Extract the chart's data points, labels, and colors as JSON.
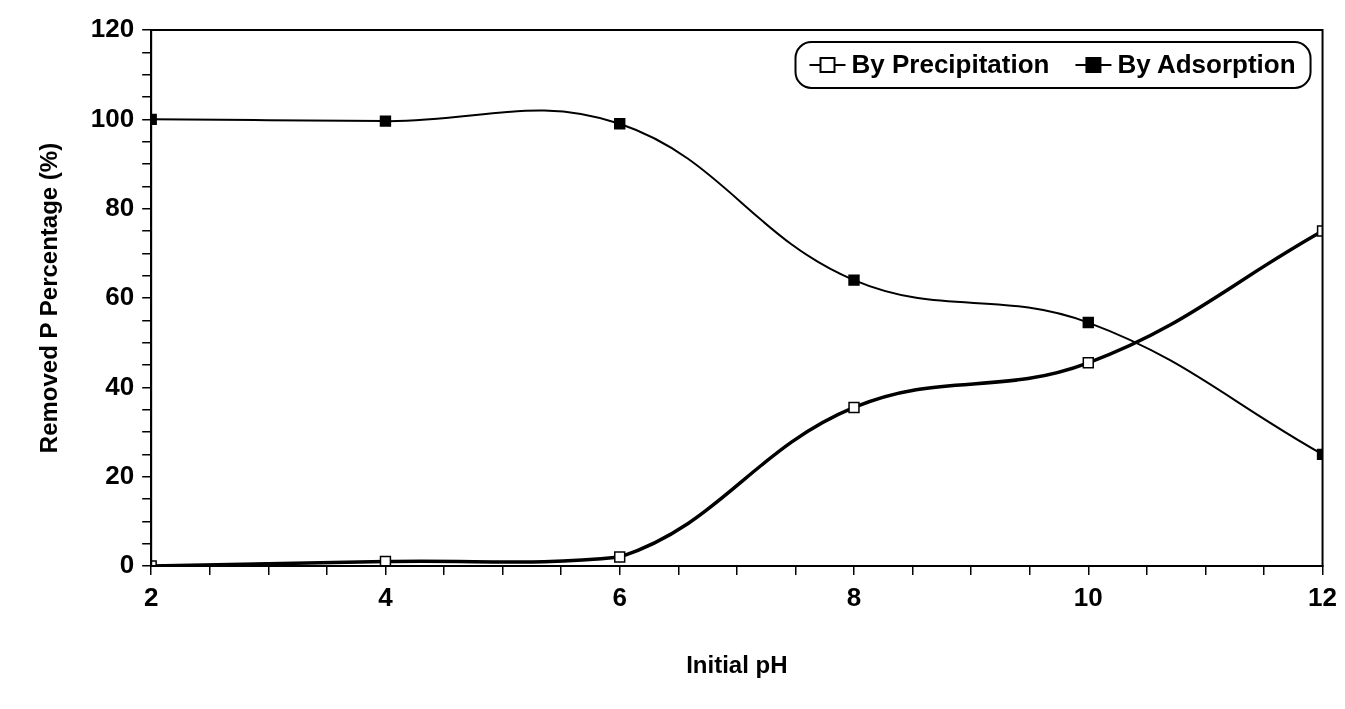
{
  "chart_data": {
    "type": "line",
    "xlabel": "Initial pH",
    "ylabel": "Removed P Percentage (%)",
    "x": [
      2,
      4,
      6,
      8,
      10,
      12
    ],
    "series": [
      {
        "name": "By Precipitation",
        "color": "#000000",
        "values": [
          0,
          1,
          2,
          35.5,
          45.5,
          75
        ]
      },
      {
        "name": "By Adsorption",
        "color": "#000000",
        "values": [
          100,
          99.6,
          99,
          64,
          54.5,
          25
        ]
      }
    ],
    "xlim": [
      2,
      12
    ],
    "xticks": [
      2,
      {
        "value": 2.5,
        "label": null
      },
      {
        "value": 3,
        "label": null
      },
      {
        "value": 3.5,
        "label": null
      },
      4,
      {
        "value": 4.5,
        "label": null
      },
      {
        "value": 5,
        "label": null
      },
      {
        "value": 5.5,
        "label": null
      },
      6,
      {
        "value": 6.5,
        "label": null
      },
      {
        "value": 7,
        "label": null
      },
      {
        "value": 7.5,
        "label": null
      },
      8,
      {
        "value": 8.5,
        "label": null
      },
      {
        "value": 9,
        "label": null
      },
      {
        "value": 9.5,
        "label": null
      },
      10,
      {
        "value": 10.5,
        "label": null
      },
      {
        "value": 11,
        "label": null
      },
      {
        "value": 11.5,
        "label": null
      },
      12
    ],
    "ylim": [
      0,
      120
    ],
    "yticks": [
      0,
      {
        "value": 5,
        "label": null
      },
      {
        "value": 10,
        "label": null
      },
      {
        "value": 15,
        "label": null
      },
      20,
      {
        "value": 25,
        "label": null
      },
      {
        "value": 30,
        "label": null
      },
      {
        "value": 35,
        "label": null
      },
      40,
      {
        "value": 45,
        "label": null
      },
      {
        "value": 50,
        "label": null
      },
      {
        "value": 55,
        "label": null
      },
      60,
      {
        "value": 65,
        "label": null
      },
      {
        "value": 70,
        "label": null
      },
      {
        "value": 75,
        "label": null
      },
      80,
      {
        "value": 85,
        "label": null
      },
      {
        "value": 90,
        "label": null
      },
      {
        "value": 95,
        "label": null
      },
      100,
      {
        "value": 105,
        "label": null
      },
      {
        "value": 110,
        "label": null
      },
      {
        "value": 115,
        "label": null
      },
      120
    ],
    "grid": false,
    "legend": "top right",
    "marker": "square",
    "line_style": "solid"
  }
}
